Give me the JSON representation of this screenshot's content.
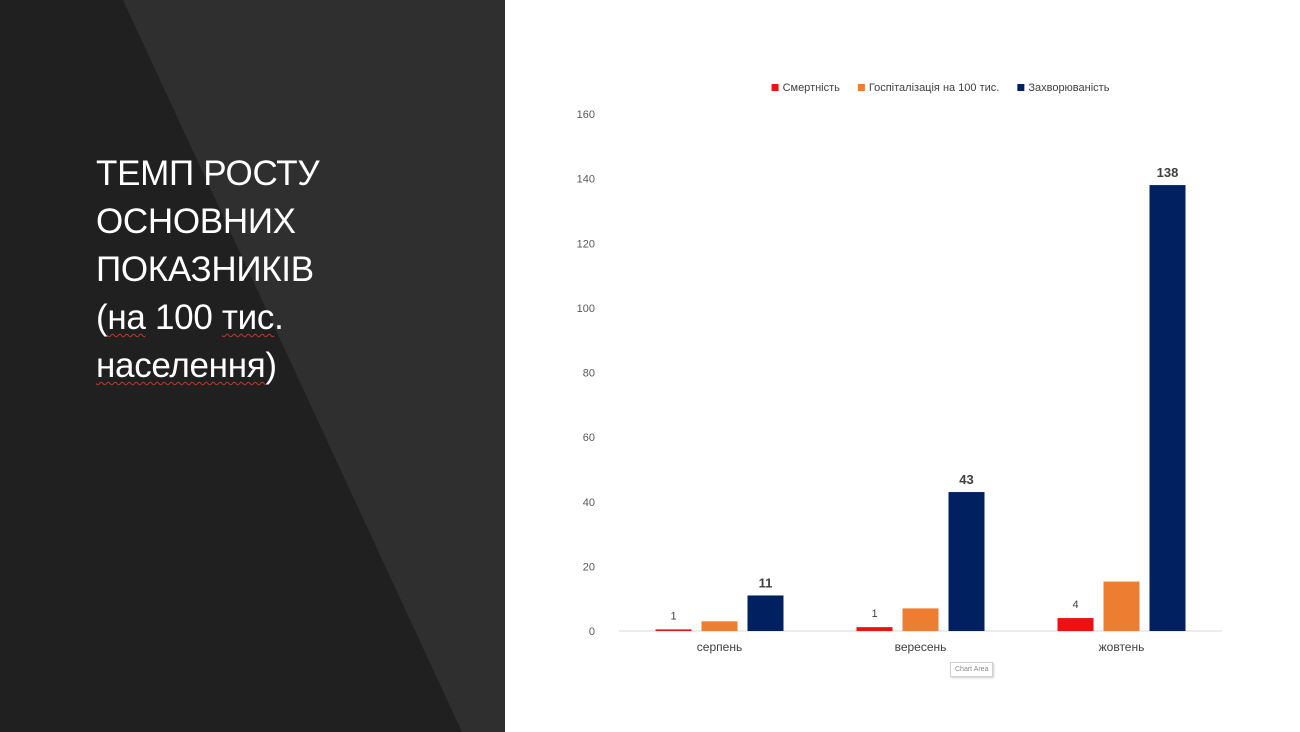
{
  "slide": {
    "title_lines": [
      {
        "parts": [
          {
            "text": "ТЕМП РОСТУ",
            "squiggle": false
          }
        ]
      },
      {
        "parts": [
          {
            "text": "ОСНОВНИХ",
            "squiggle": false
          }
        ]
      },
      {
        "parts": [
          {
            "text": "ПОКАЗНИКІВ",
            "squiggle": false
          }
        ]
      },
      {
        "parts": [
          {
            "text": "(",
            "squiggle": false
          },
          {
            "text": "на",
            "squiggle": true
          },
          {
            "text": " 100 ",
            "squiggle": false
          },
          {
            "text": "тис",
            "squiggle": true
          },
          {
            "text": ".",
            "squiggle": false
          }
        ]
      },
      {
        "parts": [
          {
            "text": "населення",
            "squiggle": true
          },
          {
            "text": ")",
            "squiggle": false
          }
        ]
      }
    ],
    "tooltip": "Chart Area",
    "colors": {
      "panel_dark": "#202020",
      "panel_stripe": "#2f2f2f",
      "title_text": "#ffffff",
      "spellcheck_underline": "#c0392b"
    }
  },
  "chart_data": {
    "type": "bar",
    "categories": [
      "серпень",
      "вересень",
      "жовтень"
    ],
    "series": [
      {
        "name": "Смертність",
        "color": "#ee1111",
        "values": [
          0.5,
          1.2,
          4
        ],
        "labels": [
          "1",
          "1",
          "4"
        ],
        "bold_labels": false
      },
      {
        "name": "Госпіталізація на 100 тис.",
        "color": "#ed7d31",
        "values": [
          3,
          7,
          15.3
        ],
        "labels": [],
        "bold_labels": false
      },
      {
        "name": "Захворюваність",
        "color": "#002060",
        "values": [
          11,
          43,
          138
        ],
        "labels": [
          "11",
          "43",
          "138"
        ],
        "bold_labels": true
      }
    ],
    "ylim": [
      0,
      160
    ],
    "yticks": [
      0,
      20,
      40,
      60,
      80,
      100,
      120,
      140,
      160
    ],
    "legend_position": "top",
    "gridlines": false,
    "title": "",
    "xlabel": "",
    "ylabel": ""
  }
}
